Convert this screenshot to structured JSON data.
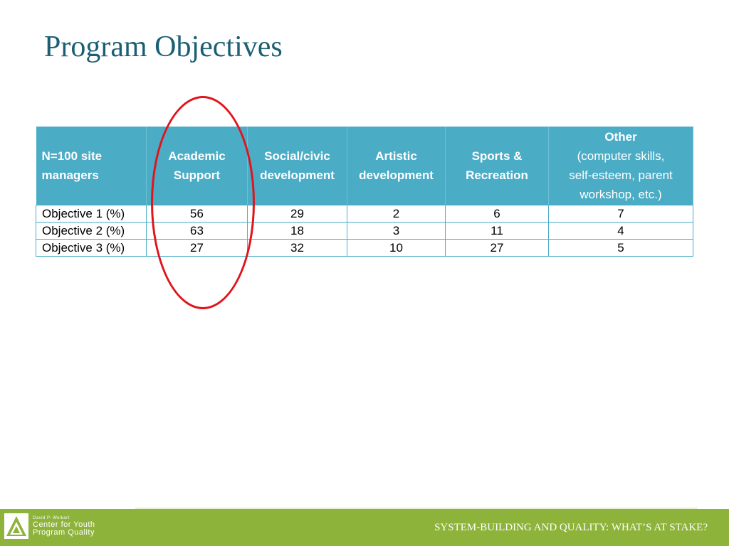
{
  "slide": {
    "title": "Program Objectives"
  },
  "table": {
    "headers": [
      {
        "line1": "N=100 site",
        "line2": "managers"
      },
      {
        "line1": "Academic",
        "line2": "Support"
      },
      {
        "line1": "Social/civic",
        "line2": "development"
      },
      {
        "line1": "Artistic",
        "line2": "development"
      },
      {
        "line1": "Sports &",
        "line2": "Recreation"
      },
      {
        "line1": "Other",
        "line2": "(computer skills,",
        "line3": "self-esteem, parent",
        "line4": "workshop, etc.)"
      }
    ],
    "rows": [
      {
        "label": "Objective 1 (%)",
        "values": [
          "56",
          "29",
          "2",
          "6",
          "7"
        ]
      },
      {
        "label": "Objective 2 (%)",
        "values": [
          "63",
          "18",
          "3",
          "11",
          "4"
        ]
      },
      {
        "label": "Objective 3 (%)",
        "values": [
          "27",
          "32",
          "10",
          "27",
          "5"
        ]
      }
    ]
  },
  "annotation": {
    "color": "#e1141c"
  },
  "footer": {
    "logo_small": "David P. Weikart",
    "logo_line1": "Center for Youth",
    "logo_line2": "Program Quality",
    "caption": "SYSTEM-BUILDING AND QUALITY: WHAT’S AT STAKE?"
  }
}
